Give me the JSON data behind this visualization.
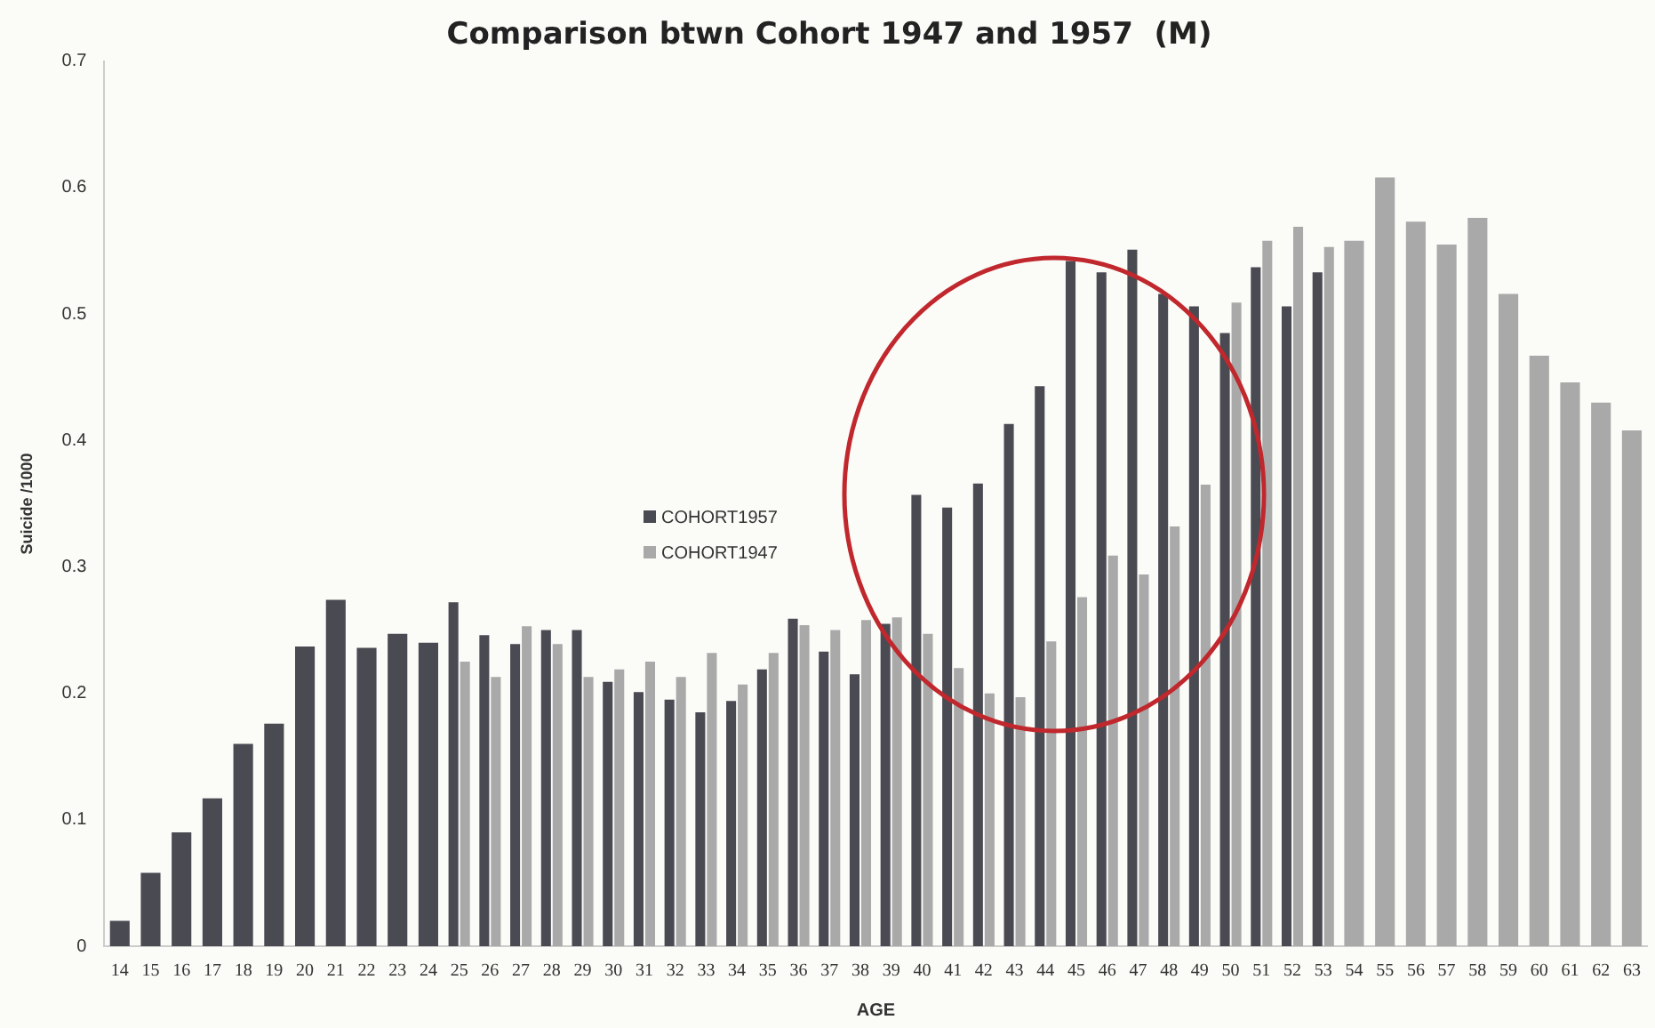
{
  "chart_data": {
    "type": "bar",
    "title": "Comparison btwn Cohort 1947 and 1957  (M)",
    "xlabel": "AGE",
    "ylabel": "Suicide /1000",
    "categories": [
      "14",
      "15",
      "16",
      "17",
      "18",
      "19",
      "20",
      "21",
      "22",
      "23",
      "24",
      "25",
      "26",
      "27",
      "28",
      "29",
      "30",
      "31",
      "32",
      "33",
      "34",
      "35",
      "36",
      "37",
      "38",
      "39",
      "40",
      "41",
      "42",
      "43",
      "44",
      "45",
      "46",
      "47",
      "48",
      "49",
      "50",
      "51",
      "52",
      "53",
      "54",
      "55",
      "56",
      "57",
      "58",
      "59",
      "60",
      "61",
      "62",
      "63"
    ],
    "series": [
      {
        "name": "COHORT1957",
        "color": "#4a4a52",
        "values": [
          0.02,
          0.058,
          0.09,
          0.117,
          0.16,
          0.176,
          0.237,
          0.274,
          0.236,
          0.247,
          0.24,
          0.272,
          0.246,
          0.239,
          0.25,
          0.25,
          0.209,
          0.201,
          0.195,
          0.185,
          0.194,
          0.219,
          0.259,
          0.233,
          0.215,
          0.255,
          0.357,
          0.347,
          0.366,
          0.413,
          0.443,
          0.542,
          0.533,
          0.551,
          0.516,
          0.506,
          0.485,
          0.537,
          0.506,
          0.533,
          null,
          null,
          null,
          null,
          null,
          null,
          null,
          null,
          null,
          null
        ]
      },
      {
        "name": "COHORT1947",
        "color": "#a9a9a9",
        "values": [
          null,
          null,
          null,
          null,
          null,
          null,
          null,
          null,
          null,
          null,
          null,
          0.225,
          0.213,
          0.253,
          0.239,
          0.213,
          0.219,
          0.225,
          0.213,
          0.232,
          0.207,
          0.232,
          0.254,
          0.25,
          0.258,
          0.26,
          0.247,
          0.22,
          0.2,
          0.197,
          0.241,
          0.276,
          0.309,
          0.294,
          0.332,
          0.365,
          0.509,
          0.558,
          0.569,
          0.553,
          0.558,
          0.608,
          0.573,
          0.555,
          0.576,
          0.516,
          0.467,
          0.446,
          0.43,
          0.408
        ]
      }
    ],
    "ylim": [
      0,
      0.7
    ],
    "yticks": [
      0,
      0.1,
      0.2,
      0.3,
      0.4,
      0.5,
      0.6,
      0.7
    ],
    "grid": false,
    "legend": "center"
  }
}
